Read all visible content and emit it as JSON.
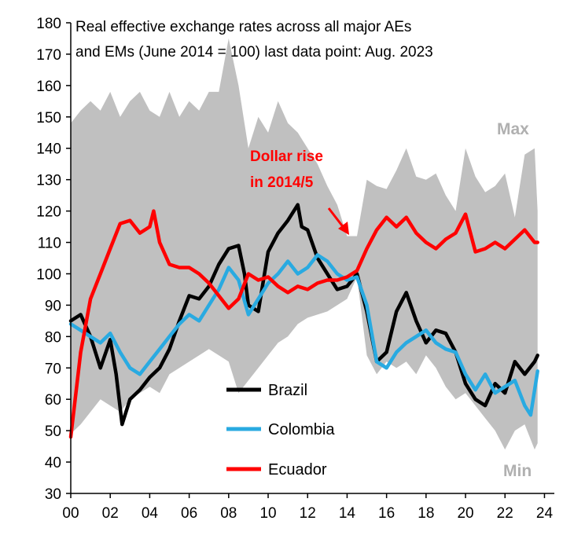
{
  "chart_data": {
    "type": "line",
    "title": "Real effective exchange rates across all major AEs and EMs (June 2014 = 100) last data point: Aug. 2023",
    "title_lines": [
      "Real effective exchange rates across all major AEs",
      "and EMs (June 2014  = 100)  last data point: Aug. 2023"
    ],
    "xlabel": "",
    "ylabel": "",
    "xlim": [
      2000,
      2024.5
    ],
    "ylim": [
      30,
      180
    ],
    "y_ticks": [
      30,
      40,
      50,
      60,
      70,
      80,
      90,
      100,
      110,
      120,
      130,
      140,
      150,
      160,
      170,
      180
    ],
    "x_ticks": [
      {
        "x": 2000,
        "label": "00"
      },
      {
        "x": 2002,
        "label": "02"
      },
      {
        "x": 2004,
        "label": "04"
      },
      {
        "x": 2006,
        "label": "06"
      },
      {
        "x": 2008,
        "label": "08"
      },
      {
        "x": 2010,
        "label": "10"
      },
      {
        "x": 2012,
        "label": "12"
      },
      {
        "x": 2014,
        "label": "14"
      },
      {
        "x": 2016,
        "label": "16"
      },
      {
        "x": 2018,
        "label": "18"
      },
      {
        "x": 2020,
        "label": "20"
      },
      {
        "x": 2022,
        "label": "22"
      },
      {
        "x": 2024,
        "label": "24"
      }
    ],
    "grid": false,
    "band": {
      "color": "#c0c0c0",
      "max_label": "Max",
      "min_label": "Min",
      "x": [
        2000.0,
        2000.5,
        2001.0,
        2001.5,
        2002.0,
        2002.5,
        2003.0,
        2003.5,
        2004.0,
        2004.5,
        2005.0,
        2005.5,
        2006.0,
        2006.5,
        2007.0,
        2007.5,
        2008.0,
        2008.5,
        2009.0,
        2009.5,
        2010.0,
        2010.5,
        2011.0,
        2011.5,
        2012.0,
        2012.5,
        2013.0,
        2013.5,
        2014.0,
        2014.5,
        2015.0,
        2015.5,
        2016.0,
        2016.5,
        2017.0,
        2017.5,
        2018.0,
        2018.5,
        2019.0,
        2019.5,
        2020.0,
        2020.5,
        2021.0,
        2021.5,
        2022.0,
        2022.5,
        2023.0,
        2023.5,
        2023.65
      ],
      "max": [
        148,
        152,
        155,
        152,
        158,
        150,
        155,
        158,
        152,
        150,
        158,
        150,
        155,
        152,
        158,
        158,
        175,
        160,
        140,
        150,
        145,
        155,
        148,
        145,
        140,
        135,
        128,
        122,
        112,
        112,
        130,
        128,
        127,
        133,
        140,
        131,
        130,
        132,
        125,
        120,
        140,
        131,
        126,
        128,
        132,
        118,
        138,
        140,
        120
      ],
      "min": [
        49,
        52,
        56,
        60,
        58,
        56,
        60,
        62,
        64,
        62,
        68,
        70,
        72,
        74,
        76,
        74,
        72,
        62,
        66,
        70,
        74,
        78,
        80,
        84,
        86,
        87,
        88,
        90,
        92,
        99,
        74,
        68,
        72,
        70,
        72,
        68,
        74,
        70,
        64,
        60,
        62,
        58,
        54,
        50,
        44,
        50,
        52,
        44,
        46
      ]
    },
    "series": [
      {
        "name": "Brazil",
        "color": "#000000",
        "x": [
          2000.0,
          2000.5,
          2001.0,
          2001.5,
          2002.0,
          2002.3,
          2002.6,
          2003.0,
          2003.5,
          2004.0,
          2004.5,
          2005.0,
          2005.5,
          2006.0,
          2006.5,
          2007.0,
          2007.5,
          2008.0,
          2008.5,
          2008.8,
          2009.0,
          2009.5,
          2010.0,
          2010.5,
          2011.0,
          2011.5,
          2011.7,
          2012.0,
          2012.5,
          2013.0,
          2013.5,
          2014.0,
          2014.5,
          2015.0,
          2015.5,
          2016.0,
          2016.5,
          2017.0,
          2017.5,
          2018.0,
          2018.5,
          2019.0,
          2019.5,
          2020.0,
          2020.5,
          2021.0,
          2021.5,
          2022.0,
          2022.5,
          2023.0,
          2023.5,
          2023.65
        ],
        "values": [
          85,
          87,
          80,
          70,
          79,
          68,
          52,
          60,
          63,
          67,
          70,
          76,
          85,
          93,
          92,
          96,
          103,
          108,
          109,
          100,
          90,
          88,
          107,
          113,
          117,
          122,
          115,
          114,
          105,
          100,
          95,
          96,
          100,
          88,
          72,
          75,
          88,
          94,
          85,
          78,
          82,
          81,
          75,
          65,
          60,
          58,
          65,
          62,
          72,
          68,
          72,
          74
        ]
      },
      {
        "name": "Colombia",
        "color": "#29aae1",
        "x": [
          2000.0,
          2000.5,
          2001.0,
          2001.5,
          2002.0,
          2002.5,
          2003.0,
          2003.5,
          2004.0,
          2004.5,
          2005.0,
          2005.5,
          2006.0,
          2006.5,
          2007.0,
          2007.5,
          2008.0,
          2008.5,
          2009.0,
          2009.5,
          2010.0,
          2010.5,
          2011.0,
          2011.5,
          2012.0,
          2012.5,
          2013.0,
          2013.5,
          2014.0,
          2014.5,
          2015.0,
          2015.5,
          2016.0,
          2016.5,
          2017.0,
          2017.5,
          2018.0,
          2018.5,
          2019.0,
          2019.5,
          2020.0,
          2020.5,
          2021.0,
          2021.5,
          2022.0,
          2022.5,
          2023.0,
          2023.3,
          2023.65
        ],
        "values": [
          84,
          82,
          80,
          78,
          81,
          75,
          70,
          68,
          72,
          76,
          80,
          84,
          87,
          85,
          90,
          95,
          102,
          98,
          87,
          92,
          97,
          100,
          104,
          100,
          102,
          106,
          104,
          100,
          98,
          99,
          90,
          72,
          70,
          75,
          78,
          80,
          82,
          78,
          76,
          75,
          68,
          63,
          68,
          62,
          64,
          66,
          58,
          55,
          69
        ]
      },
      {
        "name": "Ecuador",
        "color": "#ff0000",
        "x": [
          2000.0,
          2000.5,
          2001.0,
          2001.5,
          2002.0,
          2002.5,
          2003.0,
          2003.5,
          2004.0,
          2004.2,
          2004.5,
          2005.0,
          2005.5,
          2006.0,
          2006.5,
          2007.0,
          2007.5,
          2008.0,
          2008.5,
          2009.0,
          2009.5,
          2010.0,
          2010.5,
          2011.0,
          2011.5,
          2012.0,
          2012.5,
          2013.0,
          2013.5,
          2014.0,
          2014.5,
          2015.0,
          2015.5,
          2016.0,
          2016.5,
          2017.0,
          2017.5,
          2018.0,
          2018.5,
          2019.0,
          2019.5,
          2020.0,
          2020.5,
          2021.0,
          2021.5,
          2022.0,
          2022.5,
          2023.0,
          2023.5,
          2023.65
        ],
        "values": [
          48,
          75,
          92,
          100,
          108,
          116,
          117,
          113,
          115,
          120,
          110,
          103,
          102,
          102,
          100,
          97,
          93,
          89,
          92,
          100,
          98,
          99,
          96,
          94,
          96,
          95,
          97,
          98,
          98,
          99,
          101,
          108,
          114,
          118,
          115,
          118,
          113,
          110,
          108,
          111,
          113,
          119,
          107,
          108,
          110,
          108,
          111,
          114,
          110,
          110
        ]
      }
    ],
    "legend": {
      "position": "bottom-center",
      "entries": [
        "Brazil",
        "Colombia",
        "Ecuador"
      ]
    },
    "annotations": [
      {
        "text_lines": [
          "Dollar rise",
          "in 2014/5"
        ],
        "color": "#ff0000",
        "arrow_to": [
          2014.7,
          103
        ]
      }
    ]
  }
}
